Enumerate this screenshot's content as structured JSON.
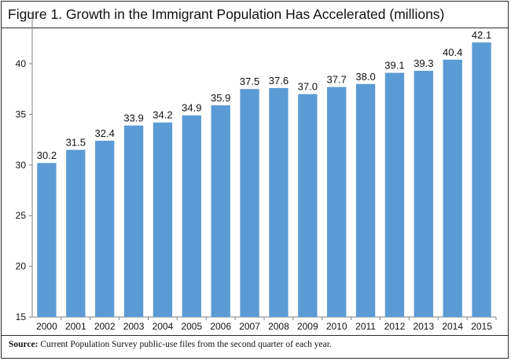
{
  "title": "Figure 1. Growth in the Immigrant Population Has Accelerated (millions)",
  "source": {
    "label": "Source:",
    "text": " Current Population Survey public-use files from the second quarter of each year."
  },
  "colors": {
    "bar": "#5b9bd5",
    "axis": "#7f7f7f",
    "border": "#2a2a2a"
  },
  "chart_data": {
    "type": "bar",
    "title": "Figure 1. Growth in the Immigrant Population Has Accelerated (millions)",
    "categories": [
      "2000",
      "2001",
      "2002",
      "2003",
      "2004",
      "2005",
      "2006",
      "2007",
      "2008",
      "2009",
      "2010",
      "2011",
      "2012",
      "2013",
      "2014",
      "2015"
    ],
    "values": [
      30.2,
      31.5,
      32.4,
      33.9,
      34.2,
      34.9,
      35.9,
      37.5,
      37.6,
      37.0,
      37.7,
      38.0,
      39.1,
      39.3,
      40.4,
      42.1
    ],
    "data_labels": [
      "30.2",
      "31.5",
      "32.4",
      "33.9",
      "34.2",
      "34.9",
      "35.9",
      "37.5",
      "37.6",
      "37.0",
      "37.7",
      "38.0",
      "39.1",
      "39.3",
      "40.4",
      "42.1"
    ],
    "ylim": [
      15,
      45
    ],
    "yticks": [
      15,
      20,
      25,
      30,
      35,
      40
    ],
    "grid": false,
    "legend": "none"
  }
}
